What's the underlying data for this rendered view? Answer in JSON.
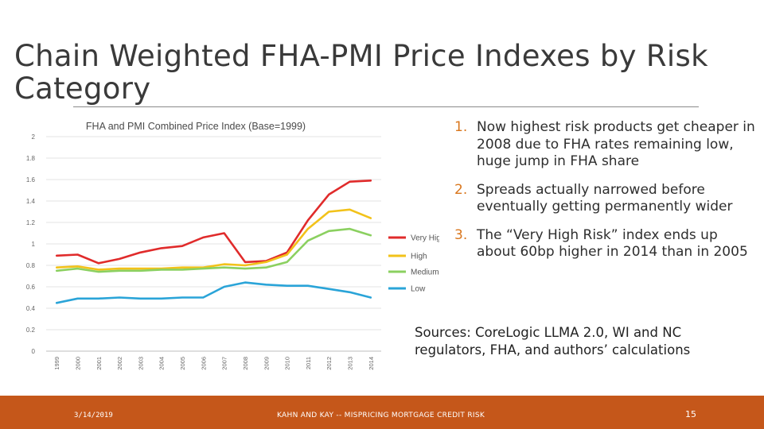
{
  "slide": {
    "title": "Chain Weighted FHA-PMI Price Indexes by Risk Category",
    "points": [
      {
        "num": "1.",
        "text": "Now highest risk products get cheaper in 2008 due to FHA rates remaining low, huge jump in FHA share"
      },
      {
        "num": "2.",
        "text": "Spreads actually narrowed before eventually getting permanently wider"
      },
      {
        "num": "3.",
        "text": "The “Very High Risk” index ends up about 60bp higher in 2014 than in 2005"
      }
    ],
    "sources": "Sources: CoreLogic LLMA 2.0, WI and NC regulators, FHA, and authors’ calculations"
  },
  "footer": {
    "date": "3/14/2019",
    "caption": "KAHN AND KAY -- MISPRICING MORTGAGE CREDIT RISK",
    "page": "15",
    "color": "#c5571a"
  },
  "chart_data": {
    "type": "line",
    "title": "FHA and PMI Combined Price Index (Base=1999)",
    "x": [
      "1999",
      "2000",
      "2001",
      "2002",
      "2003",
      "2004",
      "2005",
      "2006",
      "2007",
      "2008",
      "2009",
      "2010",
      "2011",
      "2012",
      "2013",
      "2014"
    ],
    "ylim": [
      0,
      2
    ],
    "yticks": [
      "0",
      "0.2",
      "0.4",
      "0.6",
      "0.8",
      "1",
      "1.2",
      "1.4",
      "1.6",
      "1.8",
      "2"
    ],
    "grid": true,
    "legend_position": "right",
    "series": [
      {
        "name": "Very High",
        "color": "#e02b2b",
        "values": [
          0.89,
          0.9,
          0.82,
          0.86,
          0.92,
          0.96,
          0.98,
          1.06,
          1.1,
          0.83,
          0.84,
          0.92,
          1.22,
          1.46,
          1.58,
          1.59
        ]
      },
      {
        "name": "High",
        "color": "#f2c21a",
        "values": [
          0.78,
          0.79,
          0.76,
          0.77,
          0.77,
          0.77,
          0.78,
          0.78,
          0.81,
          0.8,
          0.83,
          0.9,
          1.14,
          1.3,
          1.32,
          1.24
        ]
      },
      {
        "name": "Medium",
        "color": "#8bd060",
        "values": [
          0.75,
          0.77,
          0.74,
          0.75,
          0.75,
          0.76,
          0.76,
          0.77,
          0.78,
          0.77,
          0.78,
          0.83,
          1.03,
          1.12,
          1.14,
          1.08
        ]
      },
      {
        "name": "Low",
        "color": "#2aa4d8",
        "values": [
          0.45,
          0.49,
          0.49,
          0.5,
          0.49,
          0.49,
          0.5,
          0.5,
          0.6,
          0.64,
          0.62,
          0.61,
          0.61,
          0.58,
          0.55,
          0.5
        ]
      }
    ]
  }
}
